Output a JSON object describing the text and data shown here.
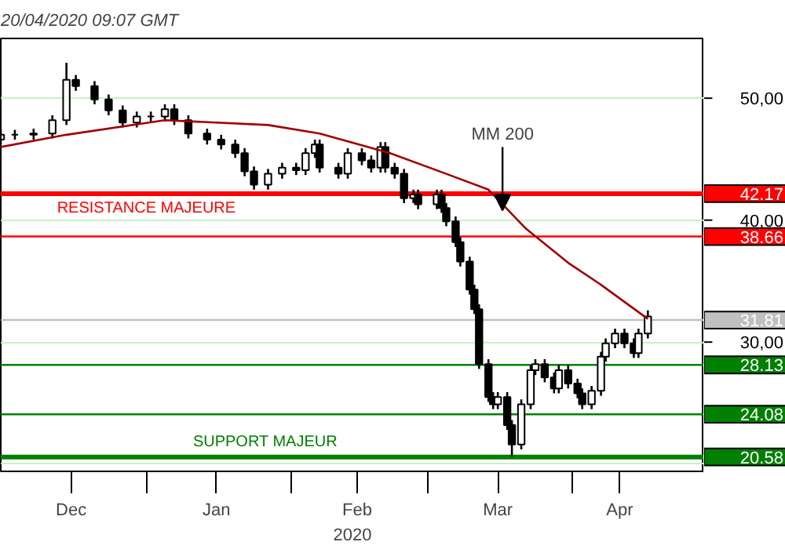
{
  "chart_data": {
    "type": "candlestick",
    "subtitle": "20/04/2020 09:07 GMT",
    "xlabel": "2020",
    "color": "#000000",
    "x": [
      "2019-12-01",
      "2019-12-04",
      "2019-12-08",
      "2019-12-12",
      "2019-12-15",
      "2019-12-17",
      "2019-12-21",
      "2019-12-24",
      "2019-12-27",
      "2019-12-30",
      "2020-01-02",
      "2020-01-05",
      "2020-01-07",
      "2020-01-10",
      "2020-01-14",
      "2020-01-17",
      "2020-01-20",
      "2020-01-22",
      "2020-01-24",
      "2020-01-27",
      "2020-01-30",
      "2020-02-02",
      "2020-02-04",
      "2020-02-06",
      "2020-02-07",
      "2020-02-11",
      "2020-02-13",
      "2020-02-16",
      "2020-02-18",
      "2020-02-20",
      "2020-02-21",
      "2020-02-23",
      "2020-02-25",
      "2020-02-27",
      "2020-02-28",
      "2020-03-03",
      "2020-03-04",
      "2020-03-05",
      "2020-03-07",
      "2020-03-08",
      "2020-03-10",
      "2020-03-11",
      "2020-03-12",
      "2020-03-14",
      "2020-03-15",
      "2020-03-16",
      "2020-03-18",
      "2020-03-19",
      "2020-03-21",
      "2020-03-23",
      "2020-03-24",
      "2020-03-26",
      "2020-03-28",
      "2020-03-29",
      "2020-03-31",
      "2020-04-02",
      "2020-04-03",
      "2020-04-05",
      "2020-04-07",
      "2020-04-08",
      "2020-04-10",
      "2020-04-12",
      "2020-04-14",
      "2020-04-15",
      "2020-04-17"
    ],
    "ohlc": [
      [
        46.6,
        47.4,
        46.2,
        47.0
      ],
      [
        47.0,
        47.4,
        46.6,
        47.0
      ],
      [
        47.0,
        47.5,
        46.6,
        47.1
      ],
      [
        47.1,
        48.6,
        46.7,
        48.2
      ],
      [
        48.2,
        52.9,
        47.8,
        51.5
      ],
      [
        51.5,
        51.9,
        50.6,
        51.0
      ],
      [
        51.0,
        51.4,
        49.5,
        49.9
      ],
      [
        49.9,
        50.3,
        48.6,
        49.0
      ],
      [
        49.0,
        49.4,
        47.6,
        48.0
      ],
      [
        48.0,
        48.9,
        47.6,
        48.5
      ],
      [
        48.5,
        48.9,
        48.1,
        48.5
      ],
      [
        48.5,
        49.5,
        48.1,
        49.1
      ],
      [
        49.1,
        49.5,
        47.8,
        48.2
      ],
      [
        48.2,
        48.6,
        46.7,
        47.1
      ],
      [
        47.1,
        47.5,
        46.2,
        46.6
      ],
      [
        46.6,
        47.0,
        45.8,
        46.2
      ],
      [
        46.2,
        46.6,
        45.1,
        45.5
      ],
      [
        45.5,
        45.9,
        43.6,
        44.0
      ],
      [
        44.0,
        44.4,
        42.5,
        42.9
      ],
      [
        42.9,
        44.2,
        42.5,
        43.8
      ],
      [
        43.8,
        44.7,
        43.4,
        44.3
      ],
      [
        44.3,
        44.7,
        43.7,
        44.1
      ],
      [
        44.1,
        45.9,
        43.7,
        45.5
      ],
      [
        45.5,
        46.6,
        45.1,
        46.2
      ],
      [
        46.2,
        46.6,
        43.9,
        44.3
      ],
      [
        44.3,
        44.7,
        43.4,
        43.8
      ],
      [
        43.8,
        45.9,
        43.4,
        45.5
      ],
      [
        45.5,
        45.9,
        44.5,
        44.9
      ],
      [
        44.9,
        45.3,
        43.9,
        44.3
      ],
      [
        44.3,
        46.4,
        43.9,
        46.0
      ],
      [
        46.0,
        46.4,
        43.9,
        44.3
      ],
      [
        44.3,
        44.7,
        43.4,
        43.8
      ],
      [
        43.8,
        44.2,
        41.4,
        41.8
      ],
      [
        41.8,
        42.5,
        41.4,
        42.1
      ],
      [
        42.1,
        42.5,
        40.9,
        41.3
      ],
      [
        41.3,
        42.5,
        40.9,
        42.1
      ],
      [
        42.1,
        42.5,
        40.6,
        41.0
      ],
      [
        41.0,
        41.4,
        39.5,
        39.9
      ],
      [
        39.9,
        40.3,
        37.8,
        38.2
      ],
      [
        38.2,
        38.6,
        36.2,
        36.6
      ],
      [
        36.6,
        37.0,
        33.9,
        34.3
      ],
      [
        34.3,
        34.7,
        32.3,
        32.7
      ],
      [
        32.7,
        33.1,
        27.8,
        28.2
      ],
      [
        28.2,
        28.6,
        25.1,
        25.5
      ],
      [
        25.5,
        25.9,
        24.5,
        24.9
      ],
      [
        24.9,
        25.9,
        24.5,
        25.5
      ],
      [
        25.5,
        25.9,
        22.8,
        23.2
      ],
      [
        23.2,
        23.6,
        20.6,
        21.6
      ],
      [
        21.6,
        25.3,
        21.2,
        24.9
      ],
      [
        24.9,
        28.1,
        24.5,
        27.7
      ],
      [
        27.7,
        28.6,
        27.3,
        28.2
      ],
      [
        28.2,
        28.6,
        26.7,
        27.1
      ],
      [
        27.1,
        27.5,
        25.8,
        26.2
      ],
      [
        26.2,
        28.1,
        25.8,
        27.7
      ],
      [
        27.7,
        28.1,
        26.2,
        26.6
      ],
      [
        26.6,
        27.0,
        25.4,
        25.8
      ],
      [
        25.8,
        26.2,
        24.5,
        24.9
      ],
      [
        24.9,
        26.4,
        24.5,
        26.0
      ],
      [
        26.0,
        29.2,
        25.6,
        28.8
      ],
      [
        28.8,
        30.3,
        28.4,
        29.9
      ],
      [
        29.9,
        31.1,
        29.5,
        30.7
      ],
      [
        30.7,
        31.1,
        29.5,
        29.9
      ],
      [
        29.9,
        30.3,
        28.7,
        29.1
      ],
      [
        29.1,
        31.1,
        28.7,
        30.7
      ],
      [
        30.7,
        32.6,
        30.3,
        32.1
      ]
    ],
    "series": [
      {
        "type": "line",
        "color": "#a00000",
        "x": [
          "2019-12-01",
          "2019-12-15",
          "2020-01-05",
          "2020-01-27",
          "2020-02-07",
          "2020-02-22",
          "2020-03-05",
          "2020-03-14",
          "2020-03-22",
          "2020-03-31",
          "2020-04-07",
          "2020-04-17"
        ],
        "values": [
          46.0,
          47.0,
          48.2,
          47.8,
          47.1,
          45.5,
          43.8,
          42.5,
          39.3,
          36.5,
          34.7,
          31.9
        ]
      }
    ],
    "ref_lines": [
      {
        "axis": "y",
        "value": 42.17,
        "label": "42.17",
        "color": "#ff0000"
      },
      {
        "axis": "y",
        "value": 38.66,
        "label": "38.66",
        "color": "#ff0000"
      },
      {
        "axis": "y",
        "value": 31.81,
        "label": "31.81",
        "color": "#c0c0c0"
      },
      {
        "axis": "y",
        "value": 28.13,
        "label": "28.13",
        "color": "#008000"
      },
      {
        "axis": "y",
        "value": 24.08,
        "label": "24.08",
        "color": "#008000"
      },
      {
        "axis": "y",
        "value": 20.58,
        "label": "20.58",
        "color": "#008000"
      }
    ],
    "annotations": [
      {
        "text": "MM 200",
        "x": "2020-03-17",
        "y": 40.8
      },
      {
        "text": "RESISTANCE MAJEURE",
        "x": "2019-12-13",
        "y": 42.17
      },
      {
        "text": "SUPPORT MAJEUR",
        "x": "2020-01-11",
        "y": 20.58
      }
    ],
    "xlim": [
      "2019-12-01",
      "2020-04-29"
    ],
    "xticks": [
      {
        "value": "2019-12-16",
        "label": "Dec"
      },
      {
        "value": "2020-01-01",
        "label": null
      },
      {
        "value": "2020-01-16",
        "label": "Jan"
      },
      {
        "value": "2020-02-01",
        "label": null
      },
      {
        "value": "2020-02-15",
        "label": "Feb"
      },
      {
        "value": "2020-03-01",
        "label": null
      },
      {
        "value": "2020-03-16",
        "label": "Mar"
      },
      {
        "value": "2020-04-01",
        "label": null
      },
      {
        "value": "2020-04-11",
        "label": "Apr"
      }
    ],
    "ylim": [
      19.4,
      54.9
    ],
    "yticks": [
      {
        "value": 20,
        "label": null
      },
      {
        "value": 30,
        "label": "30,00"
      },
      {
        "value": 40,
        "label": "40,00"
      },
      {
        "value": 50,
        "label": "50,00"
      }
    ],
    "grid": "y"
  }
}
